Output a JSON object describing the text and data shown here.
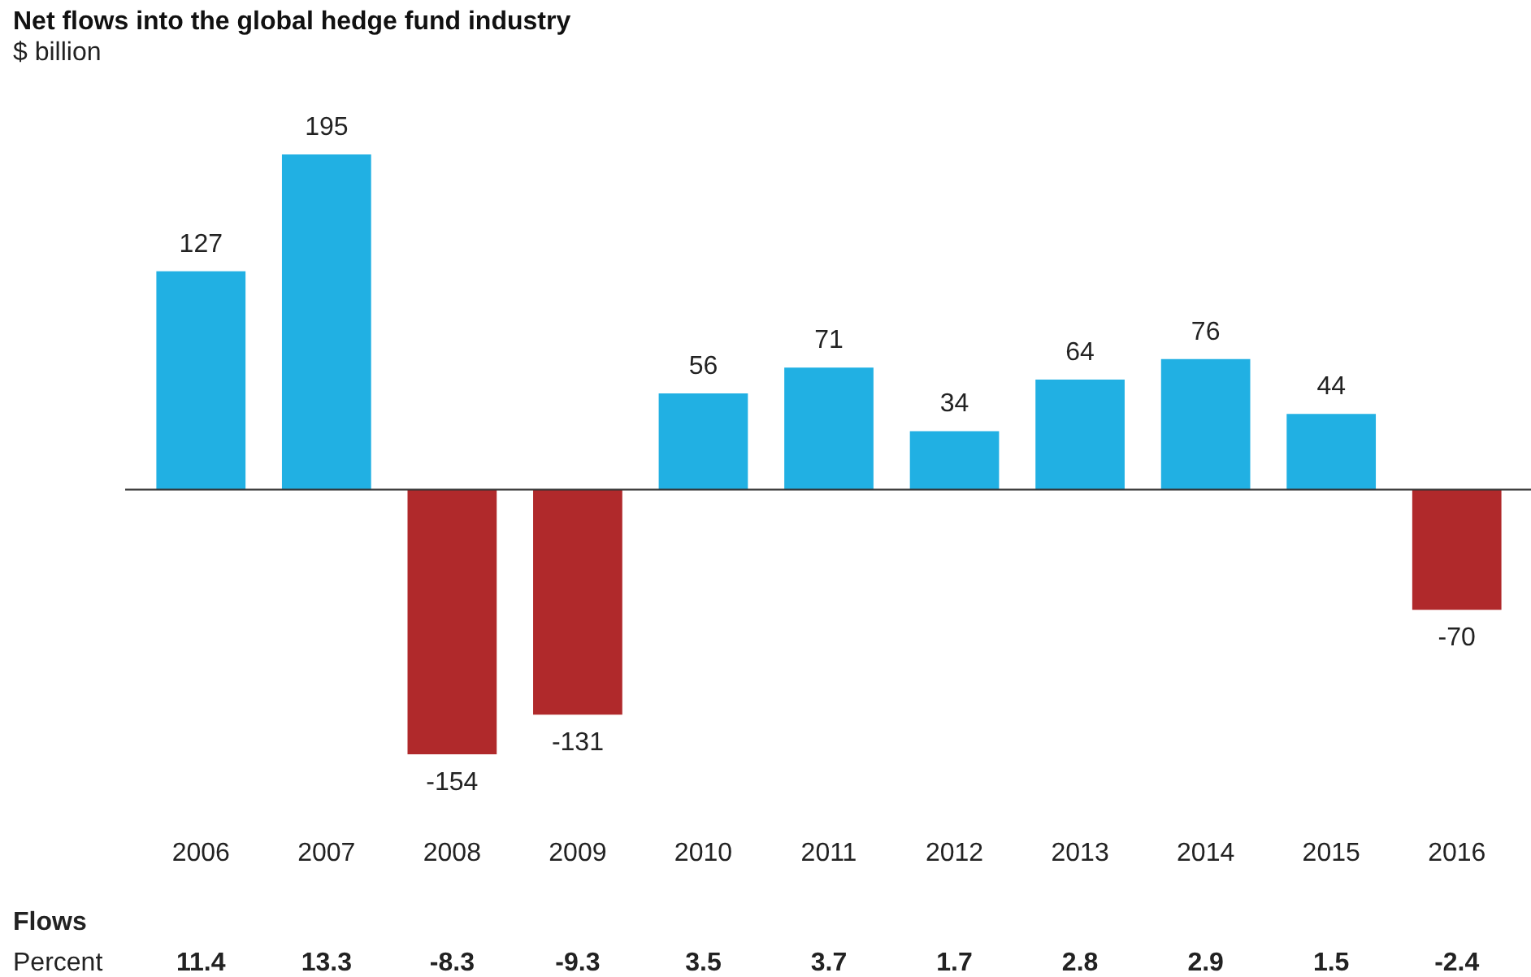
{
  "chart_data": {
    "type": "bar",
    "title": "Net flows into the global hedge fund industry",
    "subtitle": "$ billion",
    "categories": [
      "2006",
      "2007",
      "2008",
      "2009",
      "2010",
      "2011",
      "2012",
      "2013",
      "2014",
      "2015",
      "2016"
    ],
    "values": [
      127,
      195,
      -154,
      -131,
      56,
      71,
      34,
      64,
      76,
      44,
      -70
    ],
    "colors": [
      "#21b0e3",
      "#21b0e3",
      "#b0292b",
      "#b0292b",
      "#21b0e3",
      "#21b0e3",
      "#21b0e3",
      "#21b0e3",
      "#21b0e3",
      "#21b0e3",
      "#b0292b"
    ],
    "data_labels": true,
    "ref_lines": [
      {
        "axis": "y",
        "value": 0,
        "color": "#333333"
      }
    ],
    "annotations": [
      "Flows",
      "Percent",
      "11.4",
      "13.3",
      "-8.3",
      "-9.3",
      "3.5",
      "3.7",
      "1.7",
      "2.8",
      "2.9",
      "1.5",
      "-2.4"
    ]
  }
}
